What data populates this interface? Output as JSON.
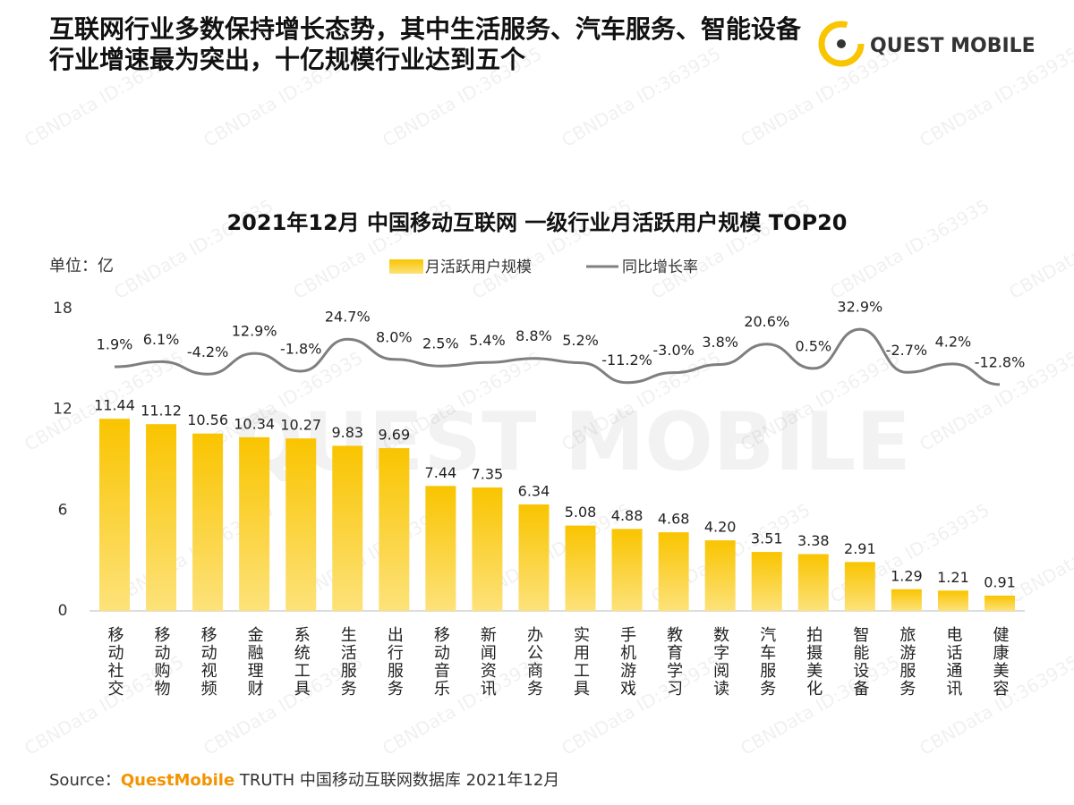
{
  "header": {
    "title": "互联网行业多数保持增长态势，其中生活服务、汽车服务、智能设备行业增速最为突出，十亿规模行业达到五个",
    "logo": "QUEST MOBILE"
  },
  "watermark": "CBNData ID:363935",
  "chart_data": {
    "type": "bar-line",
    "title": "2021年12月 中国移动互联网 一级行业月活跃用户规模 TOP20",
    "unit": "单位：亿",
    "categories": [
      "移动社交",
      "移动购物",
      "移动视频",
      "金融理财",
      "系统工具",
      "生活服务",
      "出行服务",
      "移动音乐",
      "新闻资讯",
      "办公商务",
      "实用工具",
      "手机游戏",
      "教育学习",
      "数字阅读",
      "汽车服务",
      "拍摄美化",
      "智能设备",
      "旅游服务",
      "电话通讯",
      "健康美容"
    ],
    "ylim": [
      0,
      18
    ],
    "yticks": [
      0,
      6,
      12,
      18
    ],
    "y2lim": [
      -200,
      50
    ],
    "series": [
      {
        "name": "月活跃用户规模",
        "color": "#f9c400",
        "values": [
          11.44,
          11.12,
          10.56,
          10.34,
          10.27,
          9.83,
          9.69,
          7.44,
          7.35,
          6.34,
          5.08,
          4.88,
          4.68,
          4.2,
          3.51,
          3.38,
          2.91,
          1.29,
          1.21,
          0.91
        ],
        "value_labels": [
          "11.44",
          "11.12",
          "10.56",
          "10.34",
          "10.27",
          "9.83",
          "9.69",
          "7.44",
          "7.35",
          "6.34",
          "5.08",
          "4.88",
          "4.68",
          "4.20",
          "3.51",
          "3.38",
          "2.91",
          "1.29",
          "1.21",
          "0.91"
        ]
      },
      {
        "name": "同比增长率",
        "color": "#7f7f7f",
        "axis": "y2",
        "values": [
          1.9,
          6.1,
          -4.2,
          12.9,
          -1.8,
          24.7,
          8.0,
          2.5,
          5.4,
          8.8,
          5.2,
          -11.2,
          -3.0,
          3.8,
          20.6,
          0.5,
          32.9,
          -2.7,
          4.2,
          -12.8
        ],
        "value_labels": [
          "1.9%",
          "6.1%",
          "-4.2%",
          "12.9%",
          "-1.8%",
          "24.7%",
          "8.0%",
          "2.5%",
          "5.4%",
          "8.8%",
          "5.2%",
          "-11.2%",
          "-3.0%",
          "3.8%",
          "20.6%",
          "0.5%",
          "32.9%",
          "-2.7%",
          "4.2%",
          "-12.8%"
        ]
      }
    ]
  },
  "source": {
    "prefix": "Source：",
    "brand": "QuestMobile",
    "text": "TRUTH 中国移动互联网数据库 2021年12月"
  }
}
